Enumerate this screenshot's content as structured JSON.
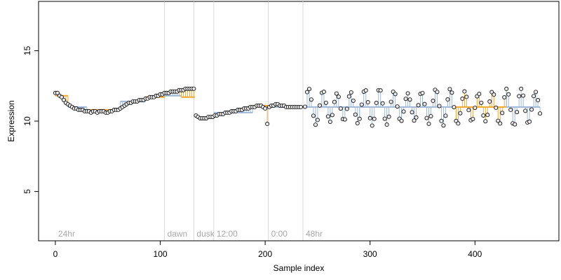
{
  "chart_data": {
    "type": "scatter",
    "xlabel": "Sample index",
    "ylabel": "Expression",
    "xlim": [
      -16,
      480
    ],
    "ylim": [
      1.5,
      18.5
    ],
    "x_ticks": [
      0,
      100,
      200,
      300,
      400
    ],
    "y_ticks": [
      5,
      10,
      15
    ],
    "grid": false,
    "legend": "none",
    "colors": {
      "point_fill": "#e8e8e8",
      "point_edge": "#000000",
      "low_segment": "#9fb8d8",
      "high_segment": "#f0a830",
      "marker_line": "#d9d9d9",
      "marker_text": "#a8a8a8"
    },
    "markers": [
      {
        "x": 0,
        "label": "24hr"
      },
      {
        "x": 104,
        "label": "dawn"
      },
      {
        "x": 132,
        "label": "dusk"
      },
      {
        "x": 151,
        "label": "12:00"
      },
      {
        "x": 203,
        "label": "0:00"
      },
      {
        "x": 236,
        "label": "48hr"
      }
    ],
    "segments": [
      {
        "x": [
          0,
          12
        ],
        "y": 11.8,
        "style": "high"
      },
      {
        "x": [
          12,
          30
        ],
        "y": 11.0,
        "style": "low"
      },
      {
        "x": [
          30,
          62
        ],
        "y": 10.8,
        "style": "high"
      },
      {
        "x": [
          62,
          86
        ],
        "y": 11.4,
        "style": "low"
      },
      {
        "x": [
          86,
          104
        ],
        "y": 11.7,
        "style": "high"
      },
      {
        "x": [
          104,
          120
        ],
        "y": 11.8,
        "style": "low"
      },
      {
        "x": [
          120,
          133
        ],
        "y": 11.7,
        "style": "high"
      },
      {
        "x": [
          133,
          151
        ],
        "y": 10.3,
        "style": "low"
      },
      {
        "x": [
          151,
          188
        ],
        "y": 10.6,
        "style": "low"
      },
      {
        "x": [
          188,
          203
        ],
        "y": 11.1,
        "style": "high"
      },
      {
        "x": [
          203,
          236
        ],
        "y": 11.0,
        "style": "low"
      },
      {
        "x": [
          236,
          290
        ],
        "y": 11.0,
        "style": "low"
      },
      {
        "x": [
          290,
          330
        ],
        "y": 11.0,
        "style": "low"
      },
      {
        "x": [
          330,
          380
        ],
        "y": 11.0,
        "style": "low"
      },
      {
        "x": [
          380,
          430
        ],
        "y": 11.0,
        "style": "high"
      },
      {
        "x": [
          430,
          462
        ],
        "y": 11.0,
        "style": "low"
      }
    ],
    "series": [
      {
        "x": [
          0,
          2,
          4,
          6,
          8,
          10,
          12,
          14,
          16,
          18,
          20,
          22,
          24,
          26,
          28,
          30,
          32,
          34,
          36,
          38,
          40,
          42,
          44,
          46,
          48,
          50,
          52,
          54,
          56,
          58,
          60,
          62,
          64,
          66,
          68,
          70,
          72,
          74,
          76,
          78,
          80,
          82,
          84,
          86,
          88,
          90,
          92,
          94,
          96,
          98,
          100,
          102,
          104,
          106,
          108,
          110,
          112,
          114,
          116,
          118,
          120,
          122,
          124,
          126,
          128,
          130,
          132
        ],
        "y": [
          12.0,
          12.0,
          11.8,
          11.7,
          11.5,
          11.3,
          11.2,
          11.1,
          11.0,
          10.9,
          10.9,
          10.8,
          10.8,
          10.8,
          10.7,
          10.7,
          10.7,
          10.6,
          10.7,
          10.7,
          10.6,
          10.7,
          10.7,
          10.7,
          10.6,
          10.6,
          10.7,
          10.7,
          10.8,
          10.8,
          10.8,
          10.9,
          11.0,
          11.1,
          11.2,
          11.3,
          11.3,
          11.4,
          11.4,
          11.4,
          11.5,
          11.5,
          11.5,
          11.6,
          11.6,
          11.7,
          11.7,
          11.7,
          11.8,
          11.8,
          11.9,
          11.9,
          12.0,
          12.0,
          12.0,
          12.1,
          12.1,
          12.1,
          12.1,
          12.2,
          12.2,
          12.2,
          12.3,
          12.3,
          12.3,
          12.3,
          12.3
        ]
      },
      {
        "x": [
          134,
          136,
          138,
          140,
          142,
          144,
          146,
          148,
          150,
          152,
          154,
          156,
          158,
          160,
          162,
          164,
          166,
          168,
          170,
          172,
          174,
          176,
          178,
          180,
          182,
          184,
          186,
          188,
          190,
          192,
          194,
          196,
          198,
          200,
          202,
          204,
          206,
          208,
          210,
          212,
          214,
          216,
          218,
          220,
          222,
          224,
          226,
          228,
          230,
          232,
          234
        ],
        "y": [
          10.4,
          10.3,
          10.2,
          10.2,
          10.2,
          10.2,
          10.3,
          10.3,
          10.3,
          10.4,
          10.4,
          10.5,
          10.5,
          10.5,
          10.6,
          10.6,
          10.6,
          10.7,
          10.7,
          10.7,
          10.8,
          10.8,
          10.8,
          10.9,
          10.9,
          10.9,
          11.0,
          11.0,
          11.0,
          11.1,
          11.1,
          11.1,
          11.0,
          10.9,
          9.8,
          11.0,
          11.1,
          11.1,
          11.2,
          11.2,
          11.1,
          11.1,
          11.1,
          11.0,
          11.0,
          11.0,
          11.0,
          11.0,
          11.0,
          11.0,
          11.0
        ]
      }
    ],
    "oscillation": {
      "x_start": 238,
      "x_end": 462,
      "step": 2,
      "center": 11.0,
      "amplitude": 1.15,
      "period": 13.5
    }
  }
}
